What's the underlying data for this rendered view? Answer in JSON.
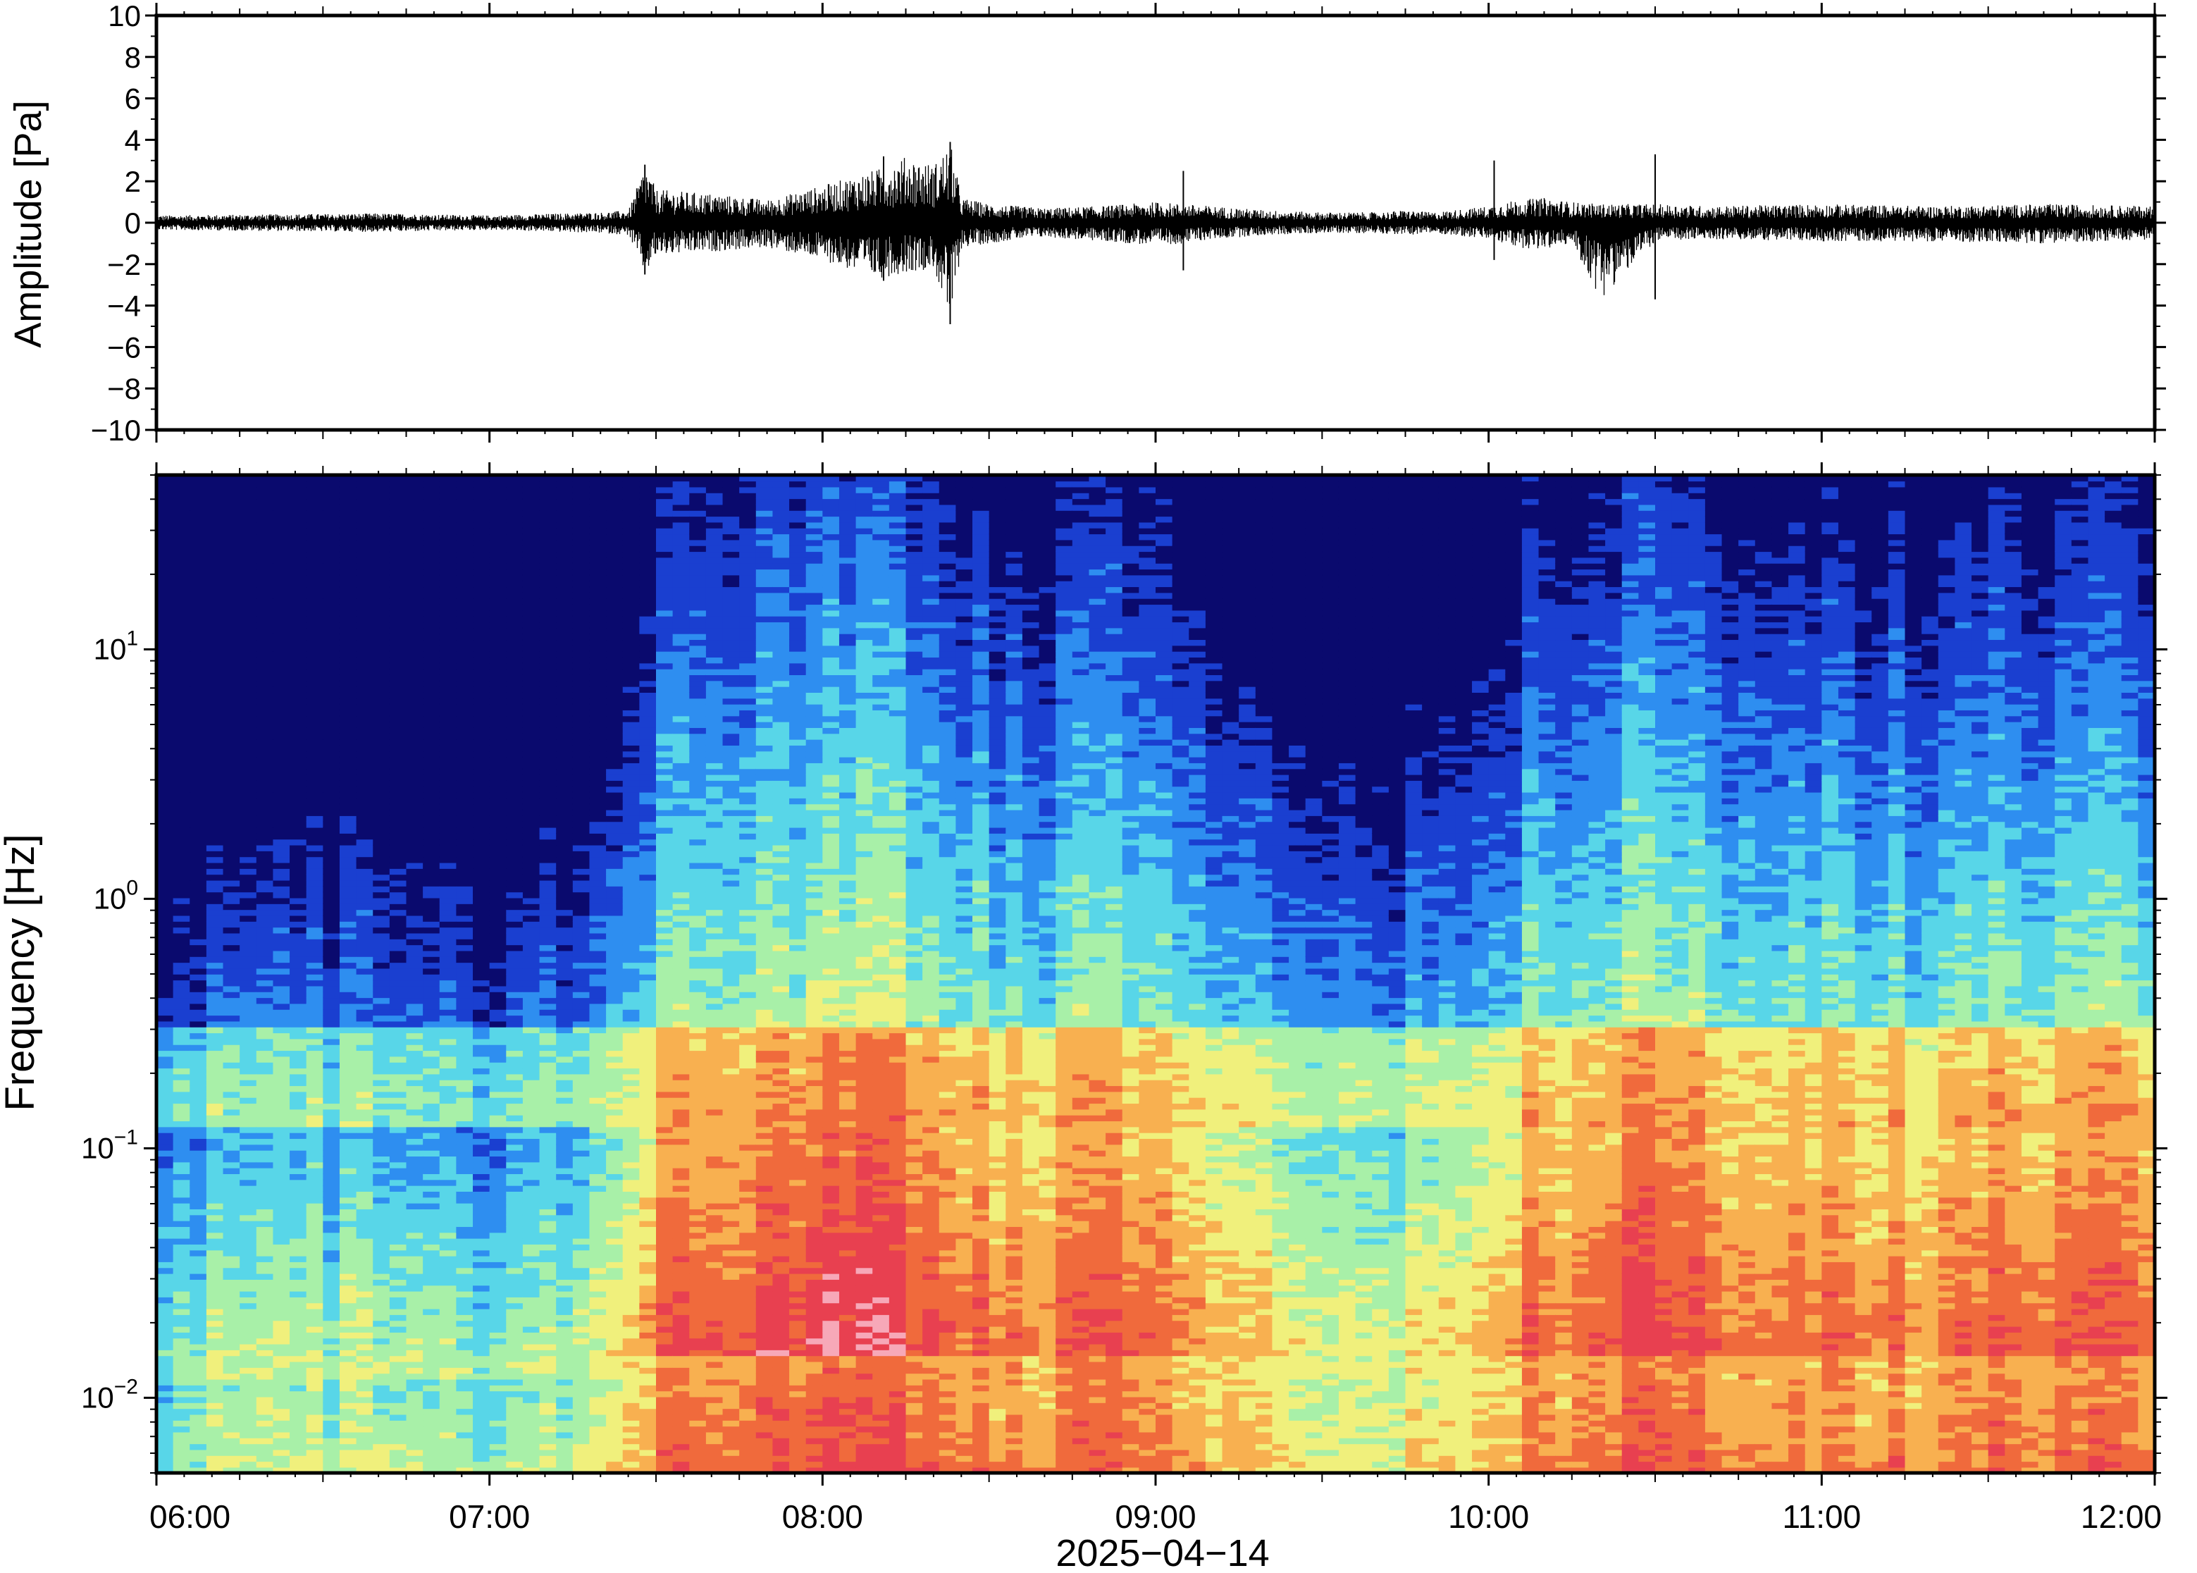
{
  "chart_data": [
    {
      "type": "line",
      "panel": "waveform",
      "ylabel": "Amplitude [Pa]",
      "ylim": [
        -10,
        10
      ],
      "y_ticks": [
        -10,
        -8,
        -6,
        -4,
        -2,
        0,
        2,
        4,
        6,
        8,
        10
      ],
      "y_tick_labels": [
        "−10",
        "−8",
        "−6",
        "−4",
        "−2",
        "0",
        "2",
        "4",
        "6",
        "8",
        "10"
      ],
      "xlim": [
        "06:00",
        "12:00"
      ],
      "grid": false,
      "envelope": {
        "x_minutes": [
          0,
          20,
          40,
          60,
          80,
          85,
          88,
          90,
          95,
          100,
          110,
          120,
          125,
          130,
          135,
          140,
          143,
          145,
          150,
          155,
          160,
          170,
          180,
          185,
          190,
          200,
          210,
          220,
          225,
          230,
          240,
          245,
          250,
          255,
          260,
          270,
          280,
          300,
          320,
          340,
          360
        ],
        "y_upper": [
          0.35,
          0.4,
          0.45,
          0.35,
          0.5,
          0.6,
          2.8,
          1.6,
          1.5,
          1.4,
          1.1,
          1.8,
          2.2,
          2.6,
          3.2,
          2.8,
          3.8,
          1.2,
          0.9,
          0.8,
          0.7,
          0.8,
          1.0,
          0.9,
          0.8,
          0.6,
          0.5,
          0.5,
          0.6,
          0.5,
          0.8,
          1.1,
          1.2,
          1.0,
          0.9,
          0.9,
          0.8,
          0.9,
          0.8,
          0.9,
          0.8
        ],
        "y_lower": [
          -0.35,
          -0.4,
          -0.45,
          -0.35,
          -0.5,
          -0.6,
          -2.5,
          -1.6,
          -1.5,
          -1.4,
          -1.2,
          -1.8,
          -2.3,
          -2.7,
          -2.4,
          -2.2,
          -4.9,
          -1.2,
          -1.0,
          -0.8,
          -0.7,
          -0.9,
          -1.1,
          -1.0,
          -0.8,
          -0.6,
          -0.5,
          -0.5,
          -0.6,
          -0.5,
          -0.8,
          -1.2,
          -1.3,
          -1.0,
          -3.7,
          -0.9,
          -0.8,
          -0.9,
          -0.9,
          -1.0,
          -0.8
        ]
      },
      "spikes": [
        {
          "x_minute": 88,
          "max": 2.8,
          "min": -2.5
        },
        {
          "x_minute": 131,
          "max": 3.2,
          "min": -2.8
        },
        {
          "x_minute": 143,
          "max": 3.9,
          "min": -4.9
        },
        {
          "x_minute": 185,
          "max": 2.5,
          "min": -2.3
        },
        {
          "x_minute": 241,
          "max": 3.0,
          "min": -1.8
        },
        {
          "x_minute": 270,
          "max": 3.3,
          "min": -3.7
        }
      ]
    },
    {
      "type": "heatmap",
      "panel": "spectrogram",
      "ylabel": "Frequency [Hz]",
      "y_scale": "log",
      "ylim": [
        0.005,
        50
      ],
      "y_ticks": [
        0.01,
        0.1,
        1,
        10
      ],
      "y_tick_labels": [
        {
          "base": "10",
          "exp": "−2"
        },
        {
          "base": "10",
          "exp": "−1"
        },
        {
          "base": "10",
          "exp": "0"
        },
        {
          "base": "10",
          "exp": "1"
        }
      ],
      "xlabel": "2025−04−14",
      "x_ticks": [
        "06:00",
        "07:00",
        "08:00",
        "09:00",
        "10:00",
        "11:00",
        "12:00"
      ],
      "xlim": [
        "06:00",
        "12:00"
      ],
      "colormap": [
        "#0a0a6e",
        "#1a3fd0",
        "#2e8ef0",
        "#58d6e8",
        "#a8f0a8",
        "#f0f07c",
        "#f8b050",
        "#f06a3c",
        "#e84050",
        "#f7a8b8"
      ],
      "activity_profile": {
        "x_minutes": [
          0,
          15,
          30,
          45,
          60,
          75,
          85,
          90,
          110,
          130,
          140,
          150,
          170,
          185,
          200,
          220,
          230,
          245,
          260,
          270,
          280,
          300,
          320,
          340,
          360
        ],
        "level": [
          0.35,
          0.38,
          0.4,
          0.37,
          0.35,
          0.4,
          0.55,
          0.75,
          0.8,
          0.85,
          0.8,
          0.7,
          0.72,
          0.7,
          0.55,
          0.45,
          0.5,
          0.68,
          0.75,
          0.85,
          0.75,
          0.72,
          0.7,
          0.75,
          0.75
        ]
      },
      "microseism_band_hz": [
        0.12,
        0.3
      ],
      "grid": false
    }
  ]
}
